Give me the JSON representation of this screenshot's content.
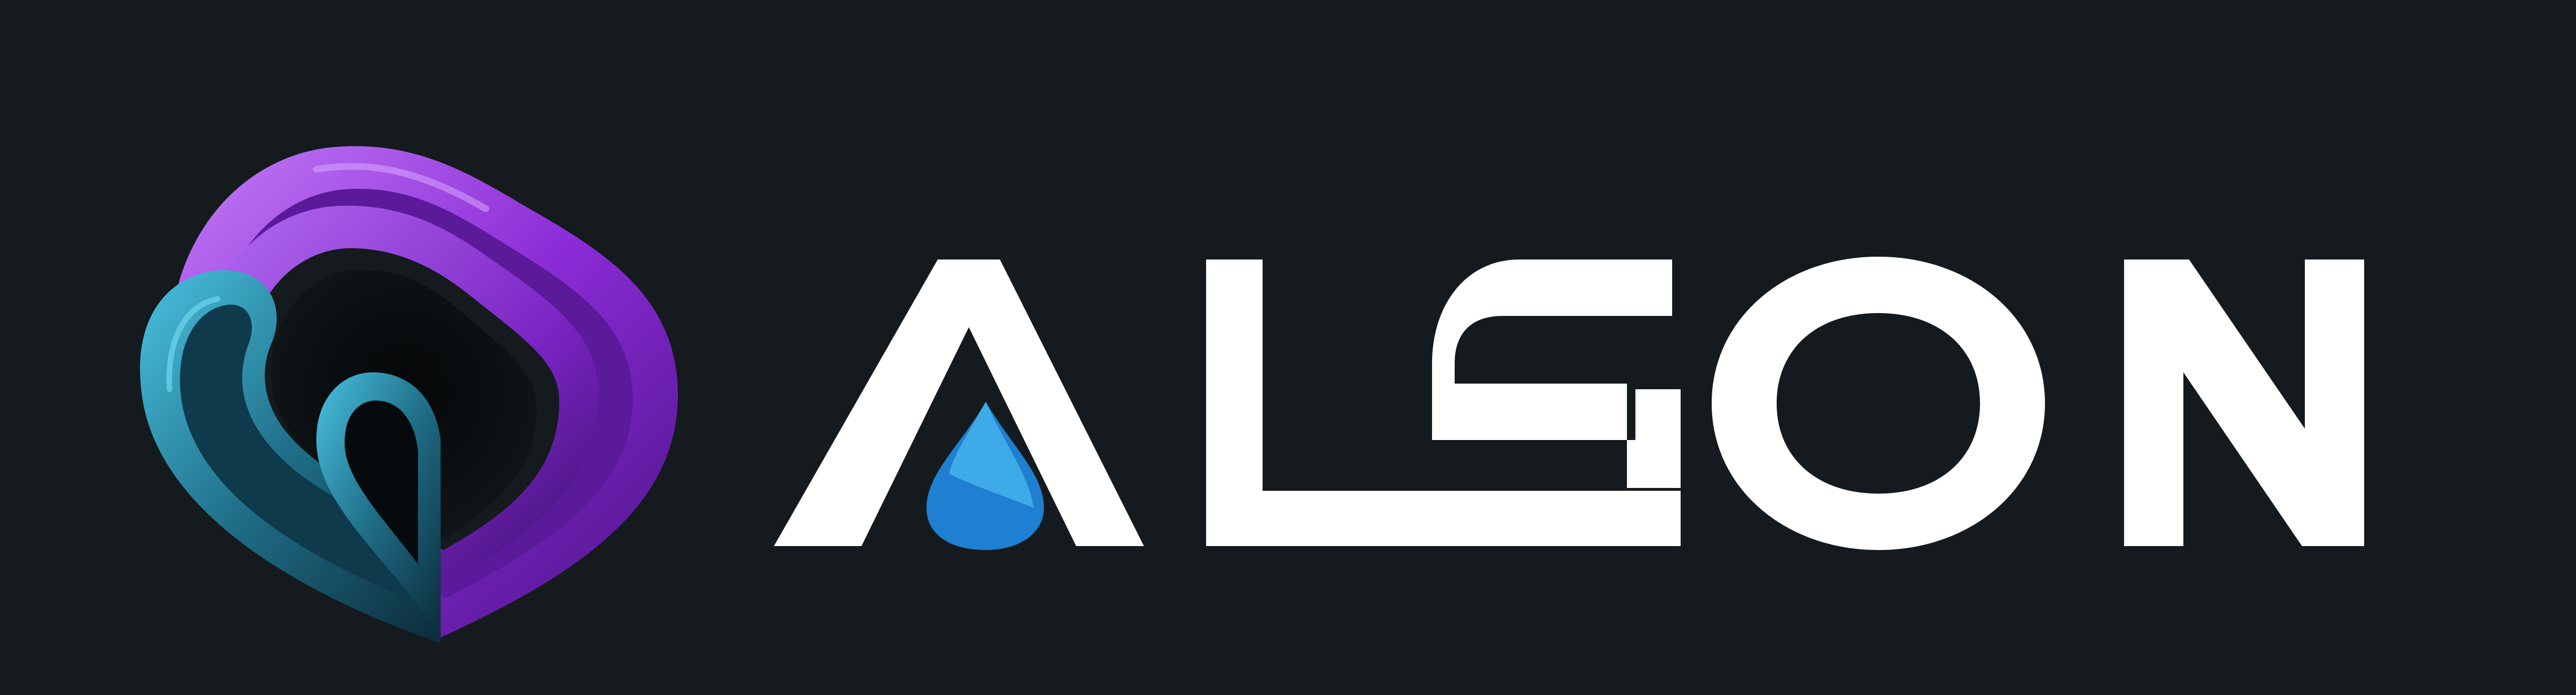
{
  "brand": {
    "name": "ALGON",
    "letters": [
      "A",
      "L",
      "G",
      "O",
      "N"
    ],
    "icon": "layered-purple-teal-heart-drop-icon",
    "accent_icon": "water-drop-icon"
  },
  "colors": {
    "background": "#141a1e",
    "wordmark": "#ffffff",
    "purple_light": "#b46cf2",
    "purple": "#8a2bd6",
    "purple_dark": "#4a1384",
    "teal_light": "#3fb6d6",
    "teal": "#1f6d87",
    "teal_dark": "#0c2c3a",
    "drop_light": "#3aa6e6",
    "drop_dark": "#1660a8"
  }
}
